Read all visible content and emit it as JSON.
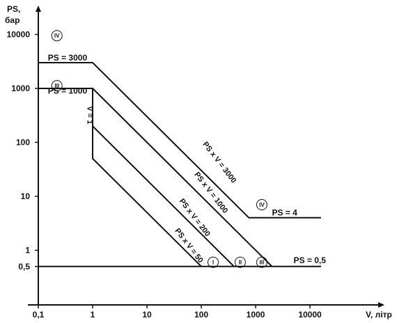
{
  "chart_data": {
    "type": "line",
    "title": "",
    "ylabel_lines": [
      "PS,",
      "бар"
    ],
    "xlabel": "V, літр",
    "xscale": "log",
    "yscale": "log",
    "xlim": [
      0.1,
      20000
    ],
    "ylim": [
      0.35,
      20000
    ],
    "x_ticks": [
      {
        "value": 0.1,
        "label": "0,1"
      },
      {
        "value": 1,
        "label": "1"
      },
      {
        "value": 10,
        "label": "10"
      },
      {
        "value": 100,
        "label": "100"
      },
      {
        "value": 1000,
        "label": "1000"
      },
      {
        "value": 10000,
        "label": "10000"
      }
    ],
    "y_ticks": [
      {
        "value": 0.5,
        "label": "0,5"
      },
      {
        "value": 1,
        "label": "1"
      },
      {
        "value": 10,
        "label": "10"
      },
      {
        "value": 100,
        "label": "100"
      },
      {
        "value": 1000,
        "label": "1000"
      },
      {
        "value": 10000,
        "label": "10000"
      }
    ],
    "series": [
      {
        "x": [
          0.1,
          1,
          750,
          16000
        ],
        "y": [
          3000,
          3000,
          4,
          4
        ]
      },
      {
        "x": [
          0.1,
          1,
          2000
        ],
        "y": [
          1000,
          1000,
          0.5
        ]
      },
      {
        "x": [
          1,
          1,
          400
        ],
        "y": [
          1000,
          200,
          0.5
        ]
      },
      {
        "x": [
          1,
          1,
          100
        ],
        "y": [
          1000,
          50,
          0.5
        ]
      },
      {
        "x": [
          0.1,
          16000
        ],
        "y": [
          0.5,
          0.5
        ]
      }
    ],
    "labels": [
      {
        "text": "PS = 3000",
        "x": 0.15,
        "y": 3300
      },
      {
        "text": "PS = 1000",
        "x": 0.15,
        "y": 800
      },
      {
        "text": "PS = 4",
        "x": 2000,
        "y": 4.4
      },
      {
        "text": "PS = 0,5",
        "x": 5000,
        "y": 0.58
      },
      {
        "text": "V = 1",
        "x": 0.8,
        "y": 320,
        "rotate": 90
      },
      {
        "text": "PS x V = 3000",
        "x": 200,
        "y": 40,
        "rotate": 52.5
      },
      {
        "text": "PS x V = 1000",
        "x": 140,
        "y": 11,
        "rotate": 52.5
      },
      {
        "text": "PS x V = 200",
        "x": 70,
        "y": 3.8,
        "rotate": 52.5
      },
      {
        "text": "PS x V = 50",
        "x": 55,
        "y": 1.15,
        "rotate": 52.5
      }
    ],
    "categories": [
      {
        "text": "IV",
        "x": 0.22,
        "y": 9500
      },
      {
        "text": "III",
        "x": 0.22,
        "y": 1120
      },
      {
        "text": "IV",
        "x": 1300,
        "y": 7
      },
      {
        "text": "III",
        "x": 1300,
        "y": 0.6
      },
      {
        "text": "II",
        "x": 520,
        "y": 0.6
      },
      {
        "text": "I",
        "x": 165,
        "y": 0.6
      }
    ]
  }
}
